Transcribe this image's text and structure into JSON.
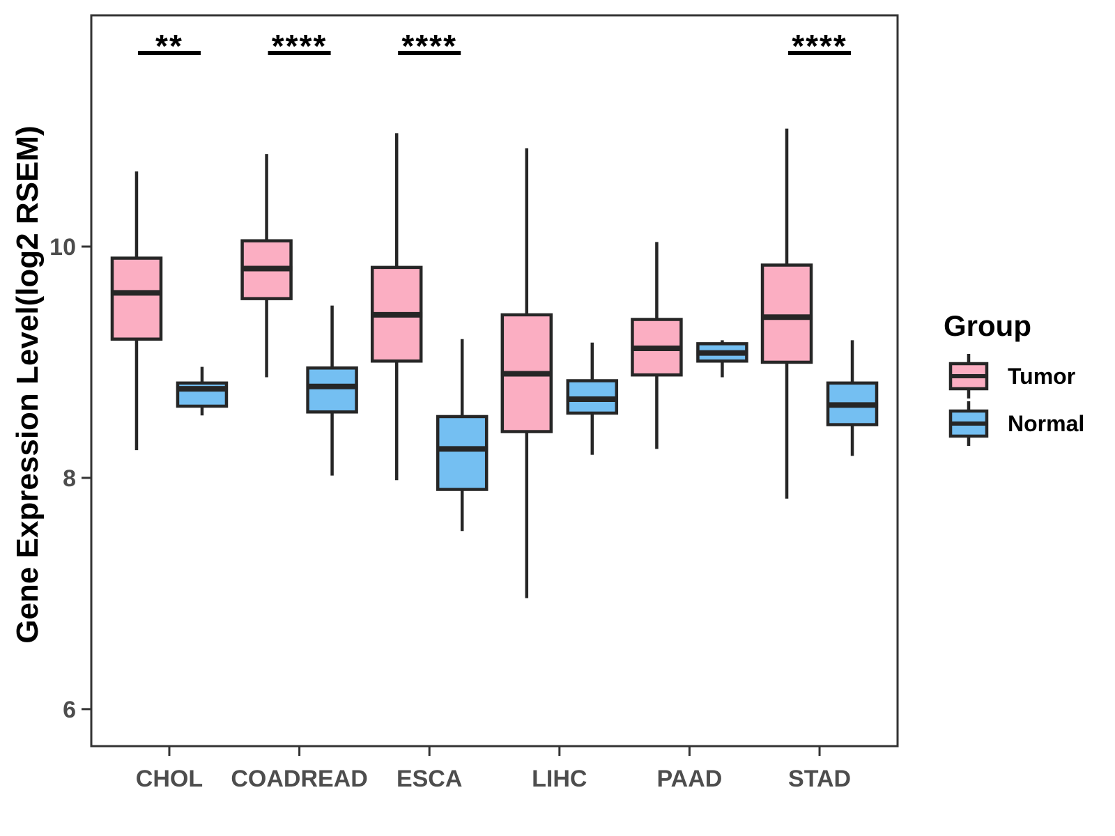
{
  "figure": {
    "background": "#FFFFFF"
  },
  "chart_data": {
    "type": "boxplot",
    "title": "",
    "xlabel": "",
    "ylabel": "Gene Expression Level(log2 RSEM)",
    "categories": [
      "CHOL",
      "COADREAD",
      "ESCA",
      "LIHC",
      "PAAD",
      "STAD"
    ],
    "y_ticks": [
      6,
      8,
      10
    ],
    "ylim": [
      5.68,
      12.0
    ],
    "grid": false,
    "colors": {
      "tumor_fill": "#FBAEC2",
      "normal_fill": "#74BFF2",
      "box_stroke": "#262626",
      "axis": "#333333",
      "tick_text": "#4D4D4D",
      "sig": "#000000"
    },
    "series": [
      {
        "name": "Tumor",
        "color": "#FBAEC2",
        "boxes": [
          {
            "category": "CHOL",
            "low": 8.24,
            "q1": 9.2,
            "median": 9.6,
            "q3": 9.9,
            "high": 10.65
          },
          {
            "category": "COADREAD",
            "low": 8.87,
            "q1": 9.55,
            "median": 9.81,
            "q3": 10.05,
            "high": 10.8
          },
          {
            "category": "ESCA",
            "low": 7.98,
            "q1": 9.01,
            "median": 9.41,
            "q3": 9.82,
            "high": 10.98
          },
          {
            "category": "LIHC",
            "low": 6.96,
            "q1": 8.4,
            "median": 8.9,
            "q3": 9.41,
            "high": 10.85
          },
          {
            "category": "PAAD",
            "low": 8.25,
            "q1": 8.89,
            "median": 9.12,
            "q3": 9.37,
            "high": 10.04
          },
          {
            "category": "STAD",
            "low": 7.82,
            "q1": 9.0,
            "median": 9.39,
            "q3": 9.84,
            "high": 11.02
          }
        ]
      },
      {
        "name": "Normal",
        "color": "#74BFF2",
        "boxes": [
          {
            "category": "CHOL",
            "low": 8.54,
            "q1": 8.62,
            "median": 8.77,
            "q3": 8.82,
            "high": 8.96
          },
          {
            "category": "COADREAD",
            "low": 8.02,
            "q1": 8.57,
            "median": 8.79,
            "q3": 8.95,
            "high": 9.49
          },
          {
            "category": "ESCA",
            "low": 7.54,
            "q1": 7.9,
            "median": 8.25,
            "q3": 8.53,
            "high": 9.2
          },
          {
            "category": "LIHC",
            "low": 8.2,
            "q1": 8.56,
            "median": 8.68,
            "q3": 8.84,
            "high": 9.17
          },
          {
            "category": "PAAD",
            "low": 8.87,
            "q1": 9.01,
            "median": 9.08,
            "q3": 9.16,
            "high": 9.19
          },
          {
            "category": "STAD",
            "low": 8.19,
            "q1": 8.46,
            "median": 8.63,
            "q3": 8.82,
            "high": 9.19
          }
        ]
      }
    ],
    "significance": [
      {
        "category": "CHOL",
        "label": "**"
      },
      {
        "category": "COADREAD",
        "label": "****"
      },
      {
        "category": "ESCA",
        "label": "****"
      },
      {
        "category": "STAD",
        "label": "****"
      }
    ],
    "legend": {
      "title": "Group",
      "position": "right",
      "entries": [
        {
          "label": "Tumor",
          "color": "#FBAEC2"
        },
        {
          "label": "Normal",
          "color": "#74BFF2"
        }
      ]
    }
  }
}
